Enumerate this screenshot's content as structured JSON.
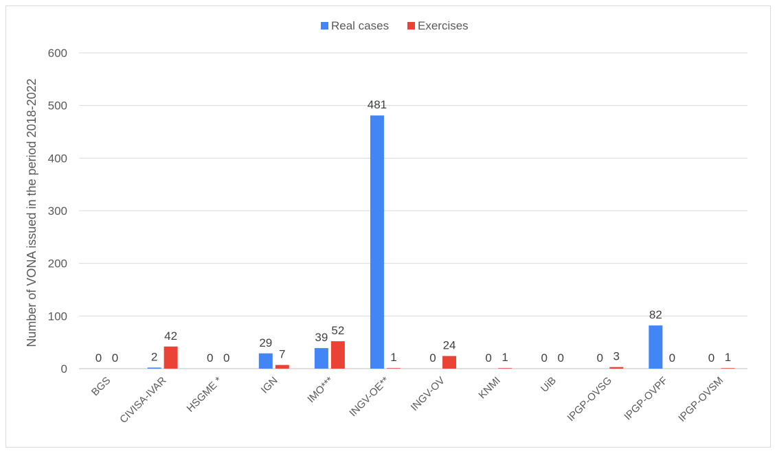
{
  "chart_data": {
    "type": "bar",
    "ylabel": "Number of VONA issued in the period 2018-2022",
    "ylim": [
      0,
      600
    ],
    "yticks": [
      0,
      100,
      200,
      300,
      400,
      500,
      600
    ],
    "grid": true,
    "legend_position": "top-center",
    "categories": [
      "BGS",
      "CIVISA-IVAR",
      "HSGME *",
      "IGN",
      "IMO***",
      "INGV-OE**",
      "INGV-OV",
      "KNMI",
      "UiB",
      "IPGP-OVSG",
      "IPGP-OVPF",
      "IPGP-OVSM"
    ],
    "series": [
      {
        "name": "Real cases",
        "color": "#4285f4",
        "values": [
          0,
          2,
          0,
          29,
          39,
          481,
          0,
          0,
          0,
          0,
          82,
          0
        ]
      },
      {
        "name": "Exercises",
        "color": "#ea4335",
        "values": [
          0,
          42,
          0,
          7,
          52,
          1,
          24,
          1,
          0,
          3,
          0,
          1
        ]
      }
    ]
  }
}
